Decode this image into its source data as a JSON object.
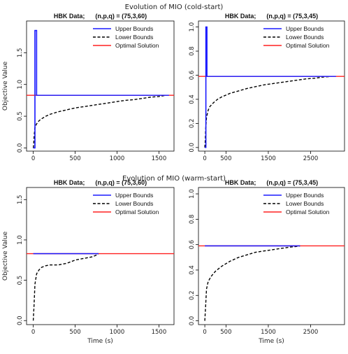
{
  "sections": [
    {
      "title": "Evolution of MIO (cold-start)"
    },
    {
      "title": "Evolution of MIO (warm-start)"
    }
  ],
  "colors": {
    "upper": "#1a1aff",
    "lower": "#000000",
    "optimal": "#ff2020"
  },
  "chart_data": [
    {
      "type": "line",
      "section": 0,
      "title": "HBK Data;      (n,p,q) = (75,3,60)",
      "xlabel": "",
      "ylabel": "Objective Value",
      "xlim": [
        -80,
        1680
      ],
      "ylim": [
        -0.05,
        2.0
      ],
      "xticks": [
        0,
        500,
        1000,
        1500
      ],
      "yticks": [
        0.0,
        0.5,
        1.0,
        1.5
      ],
      "legend": {
        "position": "top-right",
        "entries": [
          "Upper Bounds",
          "Lower Bounds",
          "Optimal Solution"
        ]
      },
      "series": [
        {
          "name": "Upper Bounds",
          "style": "solid-blue",
          "x": [
            0,
            20,
            20,
            40,
            40,
            1620
          ],
          "y": [
            0.0,
            0.0,
            1.85,
            1.85,
            0.83,
            0.83
          ]
        },
        {
          "name": "Lower Bounds",
          "style": "dashed-black",
          "x": [
            0,
            5,
            10,
            20,
            40,
            70,
            100,
            150,
            200,
            300,
            400,
            500,
            600,
            700,
            800,
            900,
            1000,
            1100,
            1200,
            1300,
            1400,
            1500,
            1580
          ],
          "y": [
            0.0,
            0.05,
            0.18,
            0.32,
            0.38,
            0.43,
            0.46,
            0.5,
            0.53,
            0.57,
            0.6,
            0.63,
            0.65,
            0.67,
            0.69,
            0.71,
            0.73,
            0.75,
            0.76,
            0.78,
            0.8,
            0.81,
            0.83
          ]
        },
        {
          "name": "Optimal Solution",
          "style": "solid-red",
          "y": 0.83
        }
      ]
    },
    {
      "type": "line",
      "section": 0,
      "title": "HBK Data;      (n,p,q) = (75,3,45)",
      "xlabel": "",
      "ylabel": "",
      "xlim": [
        -150,
        3300
      ],
      "ylim": [
        -0.03,
        1.05
      ],
      "xticks": [
        0,
        500,
        1500,
        2500
      ],
      "yticks": [
        0.0,
        0.2,
        0.4,
        0.6,
        0.8,
        1.0
      ],
      "legend": {
        "position": "top-right",
        "entries": [
          "Upper Bounds",
          "Lower Bounds",
          "Optimal Solution"
        ]
      },
      "series": [
        {
          "name": "Upper Bounds",
          "style": "solid-blue",
          "x": [
            0,
            25,
            25,
            50,
            50,
            3100
          ],
          "y": [
            0.0,
            0.0,
            1.0,
            1.0,
            0.59,
            0.59
          ]
        },
        {
          "name": "Lower Bounds",
          "style": "dashed-black",
          "x": [
            0,
            10,
            20,
            40,
            80,
            120,
            200,
            300,
            400,
            600,
            800,
            1000,
            1200,
            1400,
            1600,
            1800,
            2000,
            2200,
            2400,
            2600,
            2800,
            3000
          ],
          "y": [
            0.0,
            0.05,
            0.15,
            0.25,
            0.31,
            0.34,
            0.37,
            0.4,
            0.42,
            0.45,
            0.47,
            0.49,
            0.505,
            0.52,
            0.53,
            0.54,
            0.55,
            0.56,
            0.57,
            0.575,
            0.585,
            0.59
          ]
        },
        {
          "name": "Optimal Solution",
          "style": "solid-red",
          "y": 0.59
        }
      ]
    },
    {
      "type": "line",
      "section": 1,
      "title": "HBK Data;      (n,p,q) = (75,3,60)",
      "xlabel": "Time (s)",
      "ylabel": "Objective Value",
      "xlim": [
        -80,
        1680
      ],
      "ylim": [
        -0.05,
        1.65
      ],
      "xticks": [
        0,
        500,
        1000,
        1500
      ],
      "yticks": [
        0.0,
        0.5,
        1.0,
        1.5
      ],
      "legend": {
        "position": "top-right",
        "entries": [
          "Upper Bounds",
          "Lower Bounds",
          "Optimal Solution"
        ]
      },
      "series": [
        {
          "name": "Upper Bounds",
          "style": "solid-blue",
          "x": [
            0,
            780
          ],
          "y": [
            0.83,
            0.83
          ]
        },
        {
          "name": "Lower Bounds",
          "style": "dashed-black",
          "x": [
            0,
            10,
            20,
            40,
            70,
            100,
            150,
            200,
            250,
            300,
            350,
            400,
            450,
            500,
            550,
            600,
            650,
            700,
            750,
            780
          ],
          "y": [
            0.0,
            0.2,
            0.45,
            0.58,
            0.63,
            0.66,
            0.68,
            0.69,
            0.69,
            0.69,
            0.7,
            0.71,
            0.73,
            0.75,
            0.76,
            0.77,
            0.78,
            0.79,
            0.81,
            0.83
          ]
        },
        {
          "name": "Optimal Solution",
          "style": "solid-red",
          "y": 0.83
        }
      ]
    },
    {
      "type": "line",
      "section": 1,
      "title": "HBK Data;      (n,p,q) = (75,3,45)",
      "xlabel": "Time (s)",
      "ylabel": "",
      "xlim": [
        -150,
        3300
      ],
      "ylim": [
        -0.03,
        1.05
      ],
      "xticks": [
        0,
        500,
        1500,
        2500
      ],
      "yticks": [
        0.0,
        0.2,
        0.4,
        0.6,
        0.8,
        1.0
      ],
      "legend": {
        "position": "top-right",
        "entries": [
          "Upper Bounds",
          "Lower Bounds",
          "Optimal Solution"
        ]
      },
      "series": [
        {
          "name": "Upper Bounds",
          "style": "solid-blue",
          "x": [
            0,
            2250
          ],
          "y": [
            0.59,
            0.59
          ]
        },
        {
          "name": "Lower Bounds",
          "style": "dashed-black",
          "x": [
            0,
            20,
            40,
            80,
            150,
            250,
            400,
            600,
            800,
            1000,
            1200,
            1400,
            1600,
            1800,
            2000,
            2150,
            2250
          ],
          "y": [
            0.0,
            0.12,
            0.25,
            0.31,
            0.35,
            0.39,
            0.43,
            0.47,
            0.5,
            0.52,
            0.54,
            0.55,
            0.56,
            0.57,
            0.58,
            0.585,
            0.59
          ]
        },
        {
          "name": "Optimal Solution",
          "style": "solid-red",
          "y": 0.59
        }
      ]
    }
  ]
}
